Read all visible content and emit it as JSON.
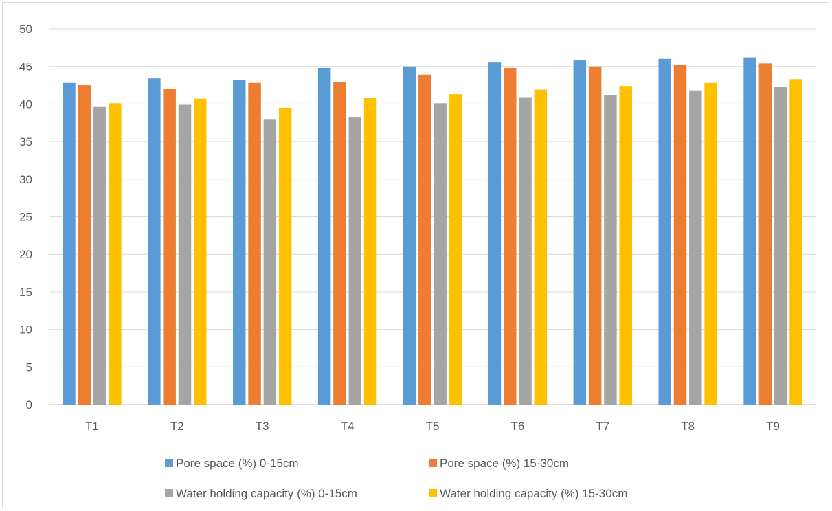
{
  "chart_data": {
    "type": "bar",
    "title": "",
    "xlabel": "",
    "ylabel": "",
    "ylim": [
      0,
      50
    ],
    "y_ticks": [
      0,
      5,
      10,
      15,
      20,
      25,
      30,
      35,
      40,
      45,
      50
    ],
    "grid": true,
    "legend_position": "bottom",
    "categories": [
      "T1",
      "T2",
      "T3",
      "T4",
      "T5",
      "T6",
      "T7",
      "T8",
      "T9"
    ],
    "series": [
      {
        "name": "Pore space (%) 0-15cm",
        "color": "#5b9bd5",
        "values": [
          42.8,
          43.4,
          43.2,
          44.8,
          45.0,
          45.6,
          45.8,
          46.0,
          46.2
        ]
      },
      {
        "name": "Pore space (%) 15-30cm",
        "color": "#ed7d31",
        "values": [
          42.5,
          42.0,
          42.8,
          42.9,
          43.9,
          44.8,
          45.0,
          45.2,
          45.4
        ]
      },
      {
        "name": "Water holding capacity (%) 0-15cm",
        "color": "#a5a5a5",
        "values": [
          39.6,
          39.9,
          38.0,
          38.2,
          40.1,
          40.9,
          41.2,
          41.8,
          42.3
        ]
      },
      {
        "name": "Water holding capacity (%) 15-30cm",
        "color": "#ffc000",
        "values": [
          40.1,
          40.7,
          39.5,
          40.8,
          41.3,
          41.9,
          42.4,
          42.8,
          43.3
        ]
      }
    ]
  }
}
